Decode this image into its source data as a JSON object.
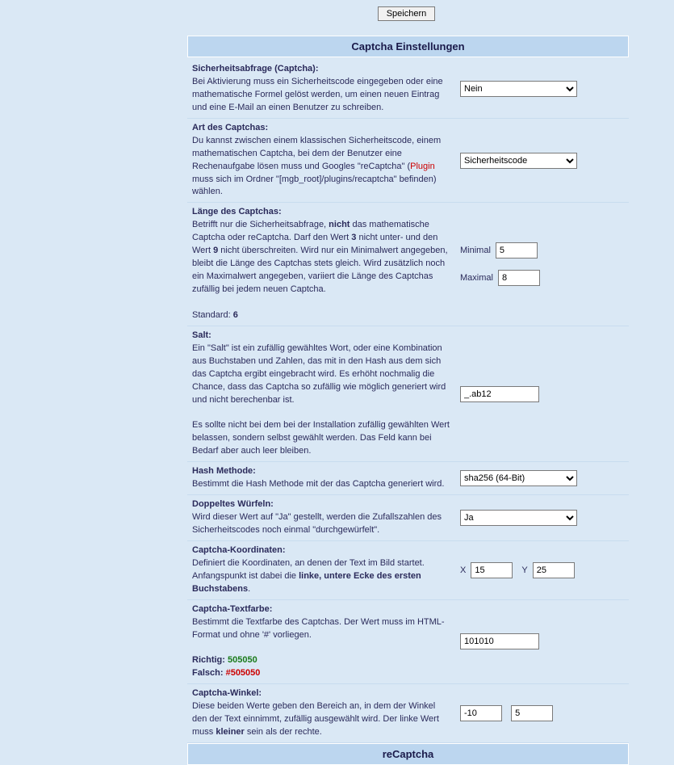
{
  "save_button": "Speichern",
  "section_title": "Captcha Einstellungen",
  "recaptcha_title": "reCaptcha",
  "rows": {
    "captcha_enable": {
      "label": "Sicherheitsabfrage (Captcha):",
      "desc": "Bei Aktivierung muss ein Sicherheitscode eingegeben oder eine mathematische Formel gelöst werden, um einen neuen Eintrag und eine E-Mail an einen Benutzer zu schreiben.",
      "value": "Nein"
    },
    "captcha_type": {
      "label": "Art des Captchas:",
      "desc1": "Du kannst zwischen einem klassischen Sicherheitscode, einem mathematischen Captcha, bei dem der Benutzer eine Rechenaufgabe lösen muss und Googles \"reCaptcha\" (",
      "plugin": "Plugin",
      "desc2": " muss sich im Ordner \"[mgb_root]/plugins/recaptcha\" befinden) wählen.",
      "value": "Sicherheitscode"
    },
    "captcha_length": {
      "label": "Länge des Captchas:",
      "desc1": "Betrifft nur die Sicherheitsabfrage, ",
      "b1": "nicht",
      "desc2": " das mathematische Captcha oder reCaptcha. Darf den Wert ",
      "b2": "3",
      "desc3": " nicht unter- und den Wert ",
      "b3": "9",
      "desc4": " nicht überschreiten. Wird nur ein Minimalwert angegeben, bleibt die Länge des Captchas stets gleich. Wird zusätzlich noch ein Maximalwert angegeben, variiert die Länge des Captchas zufällig bei jedem neuen Captcha.",
      "std_label": "Standard: ",
      "std_val": "6",
      "min_label": "Minimal",
      "min_value": "5",
      "max_label": "Maximal",
      "max_value": "8"
    },
    "salt": {
      "label": "Salt:",
      "desc1": "Ein \"Salt\" ist ein zufällig gewähltes Wort, oder eine Kombination aus Buchstaben und Zahlen, das mit in den Hash aus dem sich das Captcha ergibt eingebracht wird. Es erhöht nochmalig die Chance, dass das Captcha so zufällig wie möglich generiert wird und nicht berechenbar ist.",
      "desc2": "Es sollte nicht bei dem bei der Installation zufällig gewählten Wert belassen, sondern selbst gewählt werden. Das Feld kann bei Bedarf aber auch leer bleiben.",
      "value": "_.ab12"
    },
    "hash": {
      "label": "Hash Methode:",
      "desc": "Bestimmt die Hash Methode mit der das Captcha generiert wird.",
      "value": "sha256 (64-Bit)"
    },
    "double_dice": {
      "label": "Doppeltes Würfeln:",
      "desc": "Wird dieser Wert auf \"Ja\" gestellt, werden die Zufallszahlen des Sicherheitscodes noch einmal \"durchgewürfelt\".",
      "value": "Ja"
    },
    "coords": {
      "label": "Captcha-Koordinaten:",
      "desc1": "Definiert die Koordinaten, an denen der Text im Bild startet. Anfangspunkt ist dabei die ",
      "b1": "linke, untere Ecke des ersten Buchstabens",
      "desc2": ".",
      "x_label": "X",
      "x_value": "15",
      "y_label": "Y",
      "y_value": "25"
    },
    "textcolor": {
      "label": "Captcha-Textfarbe:",
      "desc": "Bestimmt die Textfarbe des Captchas. Der Wert muss im HTML-Format und ohne '#' vorliegen.",
      "good_label": "Richtig: ",
      "good_val": "505050",
      "bad_label": "Falsch: ",
      "bad_val": "#505050",
      "value": "101010"
    },
    "angle": {
      "label": "Captcha-Winkel:",
      "desc1": "Diese beiden Werte geben den Bereich an, in dem der Winkel den der Text einnimmt, zufällig ausgewählt wird. Der linke Wert muss ",
      "b1": "kleiner",
      "desc2": " sein als der rechte.",
      "v1": "-10",
      "v2": "5"
    }
  }
}
